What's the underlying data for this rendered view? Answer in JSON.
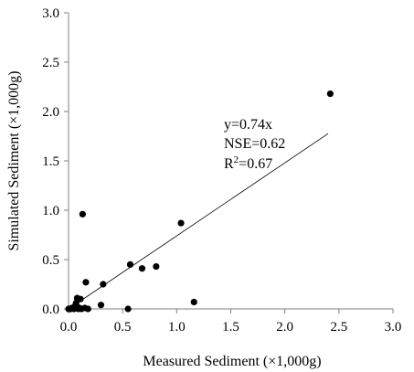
{
  "chart_data": {
    "type": "scatter",
    "xlabel": "Measured Sediment (×1,000g)",
    "ylabel": "Simulated Sediment (×1,000g)",
    "xlim": [
      0,
      3.0
    ],
    "ylim": [
      0,
      3.0
    ],
    "x_ticks": [
      "0.0",
      "0.5",
      "1.0",
      "1.5",
      "2.0",
      "2.5",
      "3.0"
    ],
    "y_ticks": [
      "0.0",
      "0.5",
      "1.0",
      "1.5",
      "2.0",
      "2.5",
      "3.0"
    ],
    "grid": false,
    "legend": "none",
    "points": [
      {
        "x": 0.0,
        "y": 0.0
      },
      {
        "x": 0.02,
        "y": 0.0
      },
      {
        "x": 0.03,
        "y": 0.01
      },
      {
        "x": 0.05,
        "y": 0.0
      },
      {
        "x": 0.06,
        "y": 0.03
      },
      {
        "x": 0.07,
        "y": 0.06
      },
      {
        "x": 0.08,
        "y": 0.02
      },
      {
        "x": 0.08,
        "y": 0.11
      },
      {
        "x": 0.09,
        "y": 0.0
      },
      {
        "x": 0.1,
        "y": 0.01
      },
      {
        "x": 0.11,
        "y": 0.1
      },
      {
        "x": 0.12,
        "y": 0.0
      },
      {
        "x": 0.13,
        "y": 0.96
      },
      {
        "x": 0.15,
        "y": 0.01
      },
      {
        "x": 0.16,
        "y": 0.27
      },
      {
        "x": 0.18,
        "y": 0.0
      },
      {
        "x": 0.3,
        "y": 0.04
      },
      {
        "x": 0.32,
        "y": 0.25
      },
      {
        "x": 0.55,
        "y": 0.0
      },
      {
        "x": 0.57,
        "y": 0.45
      },
      {
        "x": 0.68,
        "y": 0.41
      },
      {
        "x": 0.81,
        "y": 0.43
      },
      {
        "x": 1.04,
        "y": 0.87
      },
      {
        "x": 1.16,
        "y": 0.07
      },
      {
        "x": 2.42,
        "y": 2.18
      }
    ],
    "trendline": {
      "slope": 0.74,
      "x_start": 0,
      "x_end": 2.4
    },
    "annotations": {
      "equation": "y=0.74x",
      "nse": "NSE=0.62",
      "r2_base": "R",
      "r2_sup": "2",
      "r2_value": "=0.67"
    },
    "colors": {
      "points": "#000000",
      "line": "#000000",
      "axis": "#808080"
    }
  }
}
